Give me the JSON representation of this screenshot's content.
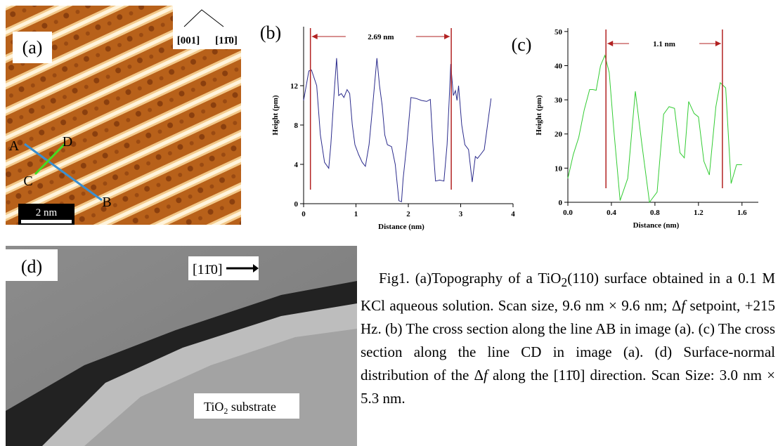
{
  "chart_data": [
    {
      "type": "line",
      "panel_label": "(b)",
      "ylabel": "Height (pm)",
      "xlabel": "Distance (nm)",
      "xlim": [
        0,
        4
      ],
      "ylim": [
        0,
        18
      ],
      "xticks": [
        0,
        1,
        2,
        3,
        4
      ],
      "yticks": [
        0,
        4,
        8,
        12
      ],
      "x": [
        0,
        0.1,
        0.15,
        0.25,
        0.32,
        0.4,
        0.48,
        0.52,
        0.58,
        0.63,
        0.67,
        0.72,
        0.77,
        0.83,
        0.88,
        0.93,
        0.98,
        1.05,
        1.12,
        1.18,
        1.25,
        1.32,
        1.4,
        1.45,
        1.5,
        1.55,
        1.6,
        1.68,
        1.75,
        1.82,
        1.87,
        1.9,
        1.97,
        2.05,
        2.15,
        2.25,
        2.35,
        2.42,
        2.47,
        2.52,
        2.6,
        2.68,
        2.74,
        2.78,
        2.81,
        2.86,
        2.9,
        2.93,
        2.96,
        3.02,
        3.08,
        3.15,
        3.22,
        3.28,
        3.32,
        3.38,
        3.45,
        3.58
      ],
      "series": [
        {
          "color": "#2b2b8c",
          "values": [
            10.5,
            13.5,
            13.6,
            12,
            7,
            4.2,
            3.6,
            6,
            11,
            14.8,
            11,
            11.2,
            10.8,
            11.6,
            11.2,
            8,
            6,
            5,
            4.2,
            3.8,
            6,
            10,
            14.8,
            12,
            10,
            7,
            6,
            5.8,
            4,
            0.3,
            0.2,
            2.5,
            6,
            10.8,
            10.7,
            10.5,
            10.4,
            10.6,
            6,
            2.3,
            2.4,
            2.3,
            6,
            10.5,
            14.2,
            11,
            11.5,
            10.5,
            12,
            8,
            6,
            5.5,
            2.2,
            4.8,
            4.6,
            5,
            5.5,
            10.7
          ]
        }
      ],
      "vlines": [
        0.13,
        2.82
      ],
      "vline_color": "#b22222",
      "annotation": "2.69 nm"
    },
    {
      "type": "line",
      "panel_label": "(c)",
      "ylabel": "Height (pm)",
      "xlabel": "Distance (nm)",
      "xlim": [
        0,
        1.75
      ],
      "ylim": [
        0,
        51
      ],
      "xticks": [
        {
          "value": 0,
          "label": "0.0"
        },
        0.4,
        0.8,
        1.2,
        1.6
      ],
      "yticks": [
        0,
        10,
        20,
        30,
        40,
        50
      ],
      "x": [
        0,
        0.05,
        0.1,
        0.15,
        0.2,
        0.23,
        0.26,
        0.3,
        0.34,
        0.38,
        0.42,
        0.48,
        0.55,
        0.62,
        0.68,
        0.75,
        0.82,
        0.88,
        0.93,
        0.98,
        1.03,
        1.07,
        1.11,
        1.16,
        1.2,
        1.25,
        1.3,
        1.36,
        1.4,
        1.45,
        1.5,
        1.55,
        1.6
      ],
      "series": [
        {
          "color": "#33cc33",
          "values": [
            7,
            14,
            19,
            27,
            33,
            33,
            32.8,
            40,
            43,
            38,
            22,
            0.5,
            7,
            32.5,
            17,
            0,
            3,
            25.8,
            28,
            27.5,
            14.5,
            13,
            29.5,
            26,
            25,
            12,
            8,
            28,
            35,
            33.5,
            5.5,
            11,
            11
          ]
        }
      ],
      "vlines": [
        0.35,
        1.42
      ],
      "vline_color": "#b22222",
      "annotation": "1.1 nm"
    }
  ],
  "figure_a": {
    "label": "(a)",
    "directions": [
      "[001]",
      "[11̄0]"
    ],
    "points": [
      "A",
      "B",
      "C",
      "D"
    ],
    "scale_bar": "2 nm"
  },
  "figure_d": {
    "label": "(d)",
    "direction": "[11̄0]",
    "region": "TiO",
    "region_sub": "2",
    "region_rest": " substrate"
  },
  "caption": [
    "Fig1. (a)Topography of a TiO",
    "2",
    "(110) surface obtained in a 0.1 M KCl aqueous solution. Scan size, 9.6 nm × 9.6 nm; Δ",
    "f",
    " setpoint, +215 Hz. (b) The cross section along the line AB in image (a). (c) The cross section along the line CD in image (a). (d) Surface-normal distribution of the Δ",
    "f",
    " along the [11̄0] direction. Scan Size: 3.0 nm × 5.3 nm."
  ]
}
